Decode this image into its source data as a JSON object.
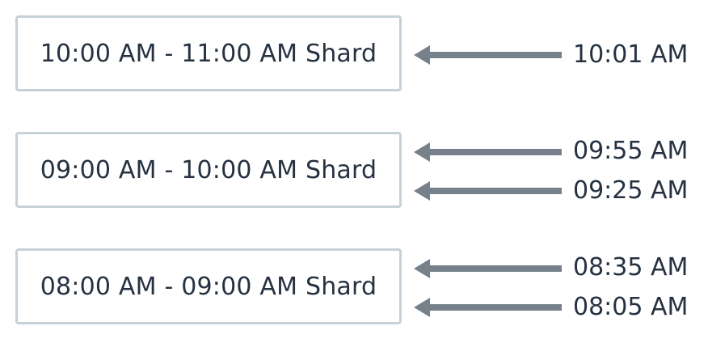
{
  "colors": {
    "box_border": "#c7d1d8",
    "arrow": "#76818c",
    "text": "#263241"
  },
  "arrow_icon": "arrow-left-icon",
  "shards": [
    {
      "label": "10:00 AM - 11:00 AM Shard",
      "events": [
        "10:01 AM"
      ]
    },
    {
      "label": "09:00 AM - 10:00 AM Shard",
      "events": [
        "09:55 AM",
        "09:25 AM"
      ]
    },
    {
      "label": "08:00 AM - 09:00 AM Shard",
      "events": [
        "08:35 AM",
        "08:05 AM"
      ]
    }
  ]
}
